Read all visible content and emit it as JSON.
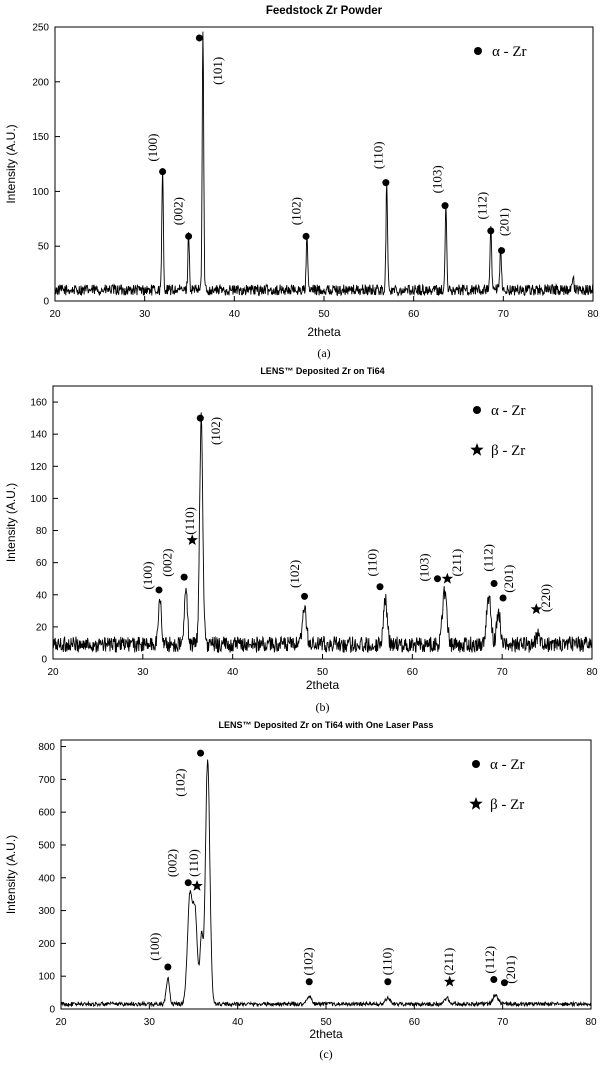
{
  "chart_data": [
    {
      "type": "line",
      "title": "Feedstock Zr Powder",
      "xlabel": "2theta",
      "ylabel": "Intensity (A.U.)",
      "panel_label": "(a)",
      "xlim": [
        20,
        80
      ],
      "ylim": [
        0,
        250
      ],
      "xticks": [
        20,
        30,
        40,
        50,
        60,
        70,
        80
      ],
      "yticks": [
        0,
        50,
        100,
        150,
        200,
        250
      ],
      "grid": false,
      "legend_position": "top-right",
      "legend": [
        {
          "marker": "circle",
          "label": "α - Zr"
        }
      ],
      "baseline": 10,
      "noise": 5,
      "peaks": [
        {
          "x": 32.0,
          "y": 110,
          "w": 0.12
        },
        {
          "x": 34.9,
          "y": 52,
          "w": 0.12
        },
        {
          "x": 36.5,
          "y": 235,
          "w": 0.12
        },
        {
          "x": 48.1,
          "y": 48,
          "w": 0.12
        },
        {
          "x": 57.0,
          "y": 100,
          "w": 0.12
        },
        {
          "x": 63.6,
          "y": 78,
          "w": 0.12
        },
        {
          "x": 68.6,
          "y": 56,
          "w": 0.12
        },
        {
          "x": 69.7,
          "y": 38,
          "w": 0.12
        },
        {
          "x": 77.8,
          "y": 10,
          "w": 0.12
        }
      ],
      "annotations": [
        {
          "marker": "circle",
          "x": 32.0,
          "y": 118,
          "label": "(100)",
          "label_x": 31.4,
          "label_y": 140,
          "rotate": true
        },
        {
          "marker": "circle",
          "x": 34.9,
          "y": 59,
          "label": "(002)",
          "label_x": 34.2,
          "label_y": 82,
          "rotate": true
        },
        {
          "marker": "circle",
          "x": 36.1,
          "y": 240,
          "label": "(101)",
          "label_x": 38.6,
          "label_y": 210,
          "rotate": true
        },
        {
          "marker": "circle",
          "x": 48.0,
          "y": 59,
          "label": "(102)",
          "label_x": 47.4,
          "label_y": 82,
          "rotate": true
        },
        {
          "marker": "circle",
          "x": 56.9,
          "y": 108,
          "label": "(110)",
          "label_x": 56.5,
          "label_y": 133,
          "rotate": true
        },
        {
          "marker": "circle",
          "x": 63.5,
          "y": 87,
          "label": "(103)",
          "label_x": 63.1,
          "label_y": 111,
          "rotate": true
        },
        {
          "marker": "circle",
          "x": 68.6,
          "y": 64,
          "label": "(112)",
          "label_x": 68.1,
          "label_y": 87,
          "rotate": true
        },
        {
          "marker": "circle",
          "x": 69.8,
          "y": 46,
          "label": "(201)",
          "label_x": 70.6,
          "label_y": 72,
          "rotate": true
        }
      ]
    },
    {
      "type": "line",
      "title": "LENS™ Deposited Zr on Ti64",
      "xlabel": "2theta",
      "ylabel": "Intensity (A.U.)",
      "panel_label": "(b)",
      "xlim": [
        20,
        80
      ],
      "ylim": [
        0,
        170
      ],
      "xticks": [
        20,
        30,
        40,
        50,
        60,
        70,
        80
      ],
      "yticks": [
        0,
        20,
        40,
        60,
        80,
        100,
        120,
        140,
        160
      ],
      "grid": false,
      "legend_position": "top-right",
      "legend": [
        {
          "marker": "circle",
          "label": "α - Zr"
        },
        {
          "marker": "star",
          "label": "β - Zr"
        }
      ],
      "baseline": 9,
      "noise": 5,
      "peaks": [
        {
          "x": 31.9,
          "y": 28,
          "w": 0.25
        },
        {
          "x": 34.8,
          "y": 33,
          "w": 0.25
        },
        {
          "x": 36.5,
          "y": 140,
          "w": 0.25
        },
        {
          "x": 48.0,
          "y": 22,
          "w": 0.3
        },
        {
          "x": 57.0,
          "y": 28,
          "w": 0.3
        },
        {
          "x": 63.6,
          "y": 33,
          "w": 0.35
        },
        {
          "x": 68.5,
          "y": 30,
          "w": 0.35
        },
        {
          "x": 69.6,
          "y": 20,
          "w": 0.3
        },
        {
          "x": 74.0,
          "y": 5,
          "w": 0.4
        }
      ],
      "annotations": [
        {
          "marker": "circle",
          "x": 31.8,
          "y": 43,
          "label": "(100)",
          "label_x": 31.0,
          "label_y": 52,
          "rotate": true
        },
        {
          "marker": "circle",
          "x": 34.6,
          "y": 51,
          "label": "(002)",
          "label_x": 33.2,
          "label_y": 60,
          "rotate": true
        },
        {
          "marker": "star",
          "x": 35.5,
          "y": 74,
          "label": "(110)",
          "label_x": 35.7,
          "label_y": 86,
          "rotate": true
        },
        {
          "marker": "circle",
          "x": 36.4,
          "y": 150,
          "label": "(102)",
          "label_x": 38.6,
          "label_y": 142,
          "rotate": true
        },
        {
          "marker": "circle",
          "x": 48.0,
          "y": 39,
          "label": "(102)",
          "label_x": 47.4,
          "label_y": 53,
          "rotate": true
        },
        {
          "marker": "circle",
          "x": 56.4,
          "y": 45,
          "label": "(110)",
          "label_x": 56.0,
          "label_y": 60,
          "rotate": true
        },
        {
          "marker": "circle",
          "x": 62.8,
          "y": 50,
          "label": "(103)",
          "label_x": 61.8,
          "label_y": 57,
          "rotate": true
        },
        {
          "marker": "star",
          "x": 63.9,
          "y": 50,
          "label": "(211)",
          "label_x": 65.4,
          "label_y": 60,
          "rotate": true
        },
        {
          "marker": "circle",
          "x": 69.1,
          "y": 47,
          "label": "(112)",
          "label_x": 68.9,
          "label_y": 63,
          "rotate": true
        },
        {
          "marker": "circle",
          "x": 70.1,
          "y": 38,
          "label": "(201)",
          "label_x": 71.2,
          "label_y": 50,
          "rotate": true
        },
        {
          "marker": "star",
          "x": 73.8,
          "y": 31,
          "label": "(220)",
          "label_x": 75.3,
          "label_y": 38,
          "rotate": true
        }
      ]
    },
    {
      "type": "line",
      "title": "LENS™ Deposited Zr on Ti64 with One Laser Pass",
      "xlabel": "2theta",
      "ylabel": "Intensity (A.U.)",
      "panel_label": "(c)",
      "xlim": [
        20,
        80
      ],
      "ylim": [
        0,
        820
      ],
      "xticks": [
        20,
        30,
        40,
        50,
        60,
        70,
        80
      ],
      "yticks": [
        0,
        100,
        200,
        300,
        400,
        500,
        600,
        700,
        800
      ],
      "grid": false,
      "legend_position": "top-right",
      "legend": [
        {
          "marker": "circle",
          "label": "α - Zr"
        },
        {
          "marker": "star",
          "label": "β - Zr"
        }
      ],
      "baseline": 15,
      "noise": 6,
      "peaks": [
        {
          "x": 32.1,
          "y": 80,
          "w": 0.25
        },
        {
          "x": 34.6,
          "y": 330,
          "w": 0.4
        },
        {
          "x": 35.2,
          "y": 260,
          "w": 0.35
        },
        {
          "x": 36.6,
          "y": 740,
          "w": 0.35
        },
        {
          "x": 35.9,
          "y": 200,
          "w": 0.25
        },
        {
          "x": 48.1,
          "y": 25,
          "w": 0.35
        },
        {
          "x": 57.0,
          "y": 20,
          "w": 0.35
        },
        {
          "x": 63.7,
          "y": 18,
          "w": 0.35
        },
        {
          "x": 69.2,
          "y": 30,
          "w": 0.4
        }
      ],
      "annotations": [
        {
          "marker": "circle",
          "x": 32.1,
          "y": 128,
          "label": "(100)",
          "label_x": 31.1,
          "label_y": 190,
          "rotate": true
        },
        {
          "marker": "circle",
          "x": 34.4,
          "y": 385,
          "label": "(002)",
          "label_x": 33.1,
          "label_y": 445,
          "rotate": true
        },
        {
          "marker": "star",
          "x": 35.4,
          "y": 375,
          "label": "(110)",
          "label_x": 35.5,
          "label_y": 445,
          "rotate": true
        },
        {
          "marker": "circle",
          "x": 35.8,
          "y": 780,
          "label": "(102)",
          "label_x": 34.0,
          "label_y": 690,
          "rotate": true
        },
        {
          "marker": "circle",
          "x": 48.1,
          "y": 83,
          "label": "(102)",
          "label_x": 48.5,
          "label_y": 145,
          "rotate": true
        },
        {
          "marker": "circle",
          "x": 57.0,
          "y": 83,
          "label": "(110)",
          "label_x": 57.4,
          "label_y": 145,
          "rotate": true
        },
        {
          "marker": "star",
          "x": 64.0,
          "y": 83,
          "label": "(211)",
          "label_x": 64.4,
          "label_y": 145,
          "rotate": true
        },
        {
          "marker": "circle",
          "x": 69.0,
          "y": 90,
          "label": "(112)",
          "label_x": 69.0,
          "label_y": 150,
          "rotate": true
        },
        {
          "marker": "circle",
          "x": 70.2,
          "y": 80,
          "label": "(201)",
          "label_x": 71.4,
          "label_y": 120,
          "rotate": true
        }
      ]
    }
  ]
}
